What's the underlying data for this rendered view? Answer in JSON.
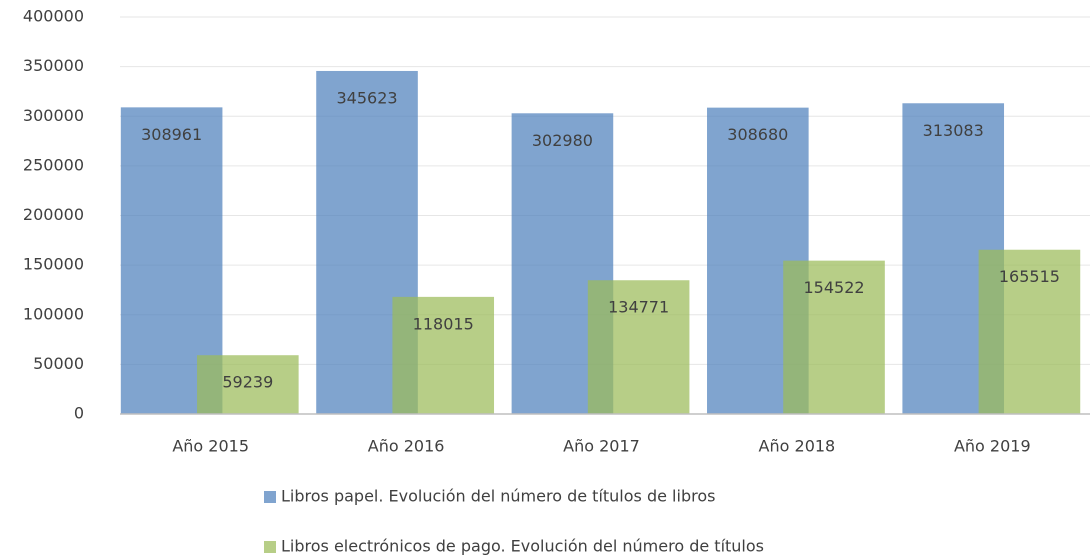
{
  "chart_data": {
    "type": "bar",
    "categories": [
      "Año 2015",
      "Año 2016",
      "Año 2017",
      "Año 2018",
      "Año 2019"
    ],
    "series": [
      {
        "name": "Libros papel. Evolución del número de títulos de libros",
        "color": "#4f81bd",
        "values": [
          308961,
          345623,
          302980,
          308680,
          313083
        ]
      },
      {
        "name": "Libros electrónicos de pago. Evolución del número de títulos",
        "color": "#9bbb59",
        "values": [
          59239,
          118015,
          134771,
          154522,
          165515
        ]
      }
    ],
    "ylim": [
      0,
      400000
    ],
    "yticks": [
      0,
      50000,
      100000,
      150000,
      200000,
      250000,
      300000,
      350000,
      400000
    ],
    "grid": true,
    "legend": "bottom"
  }
}
